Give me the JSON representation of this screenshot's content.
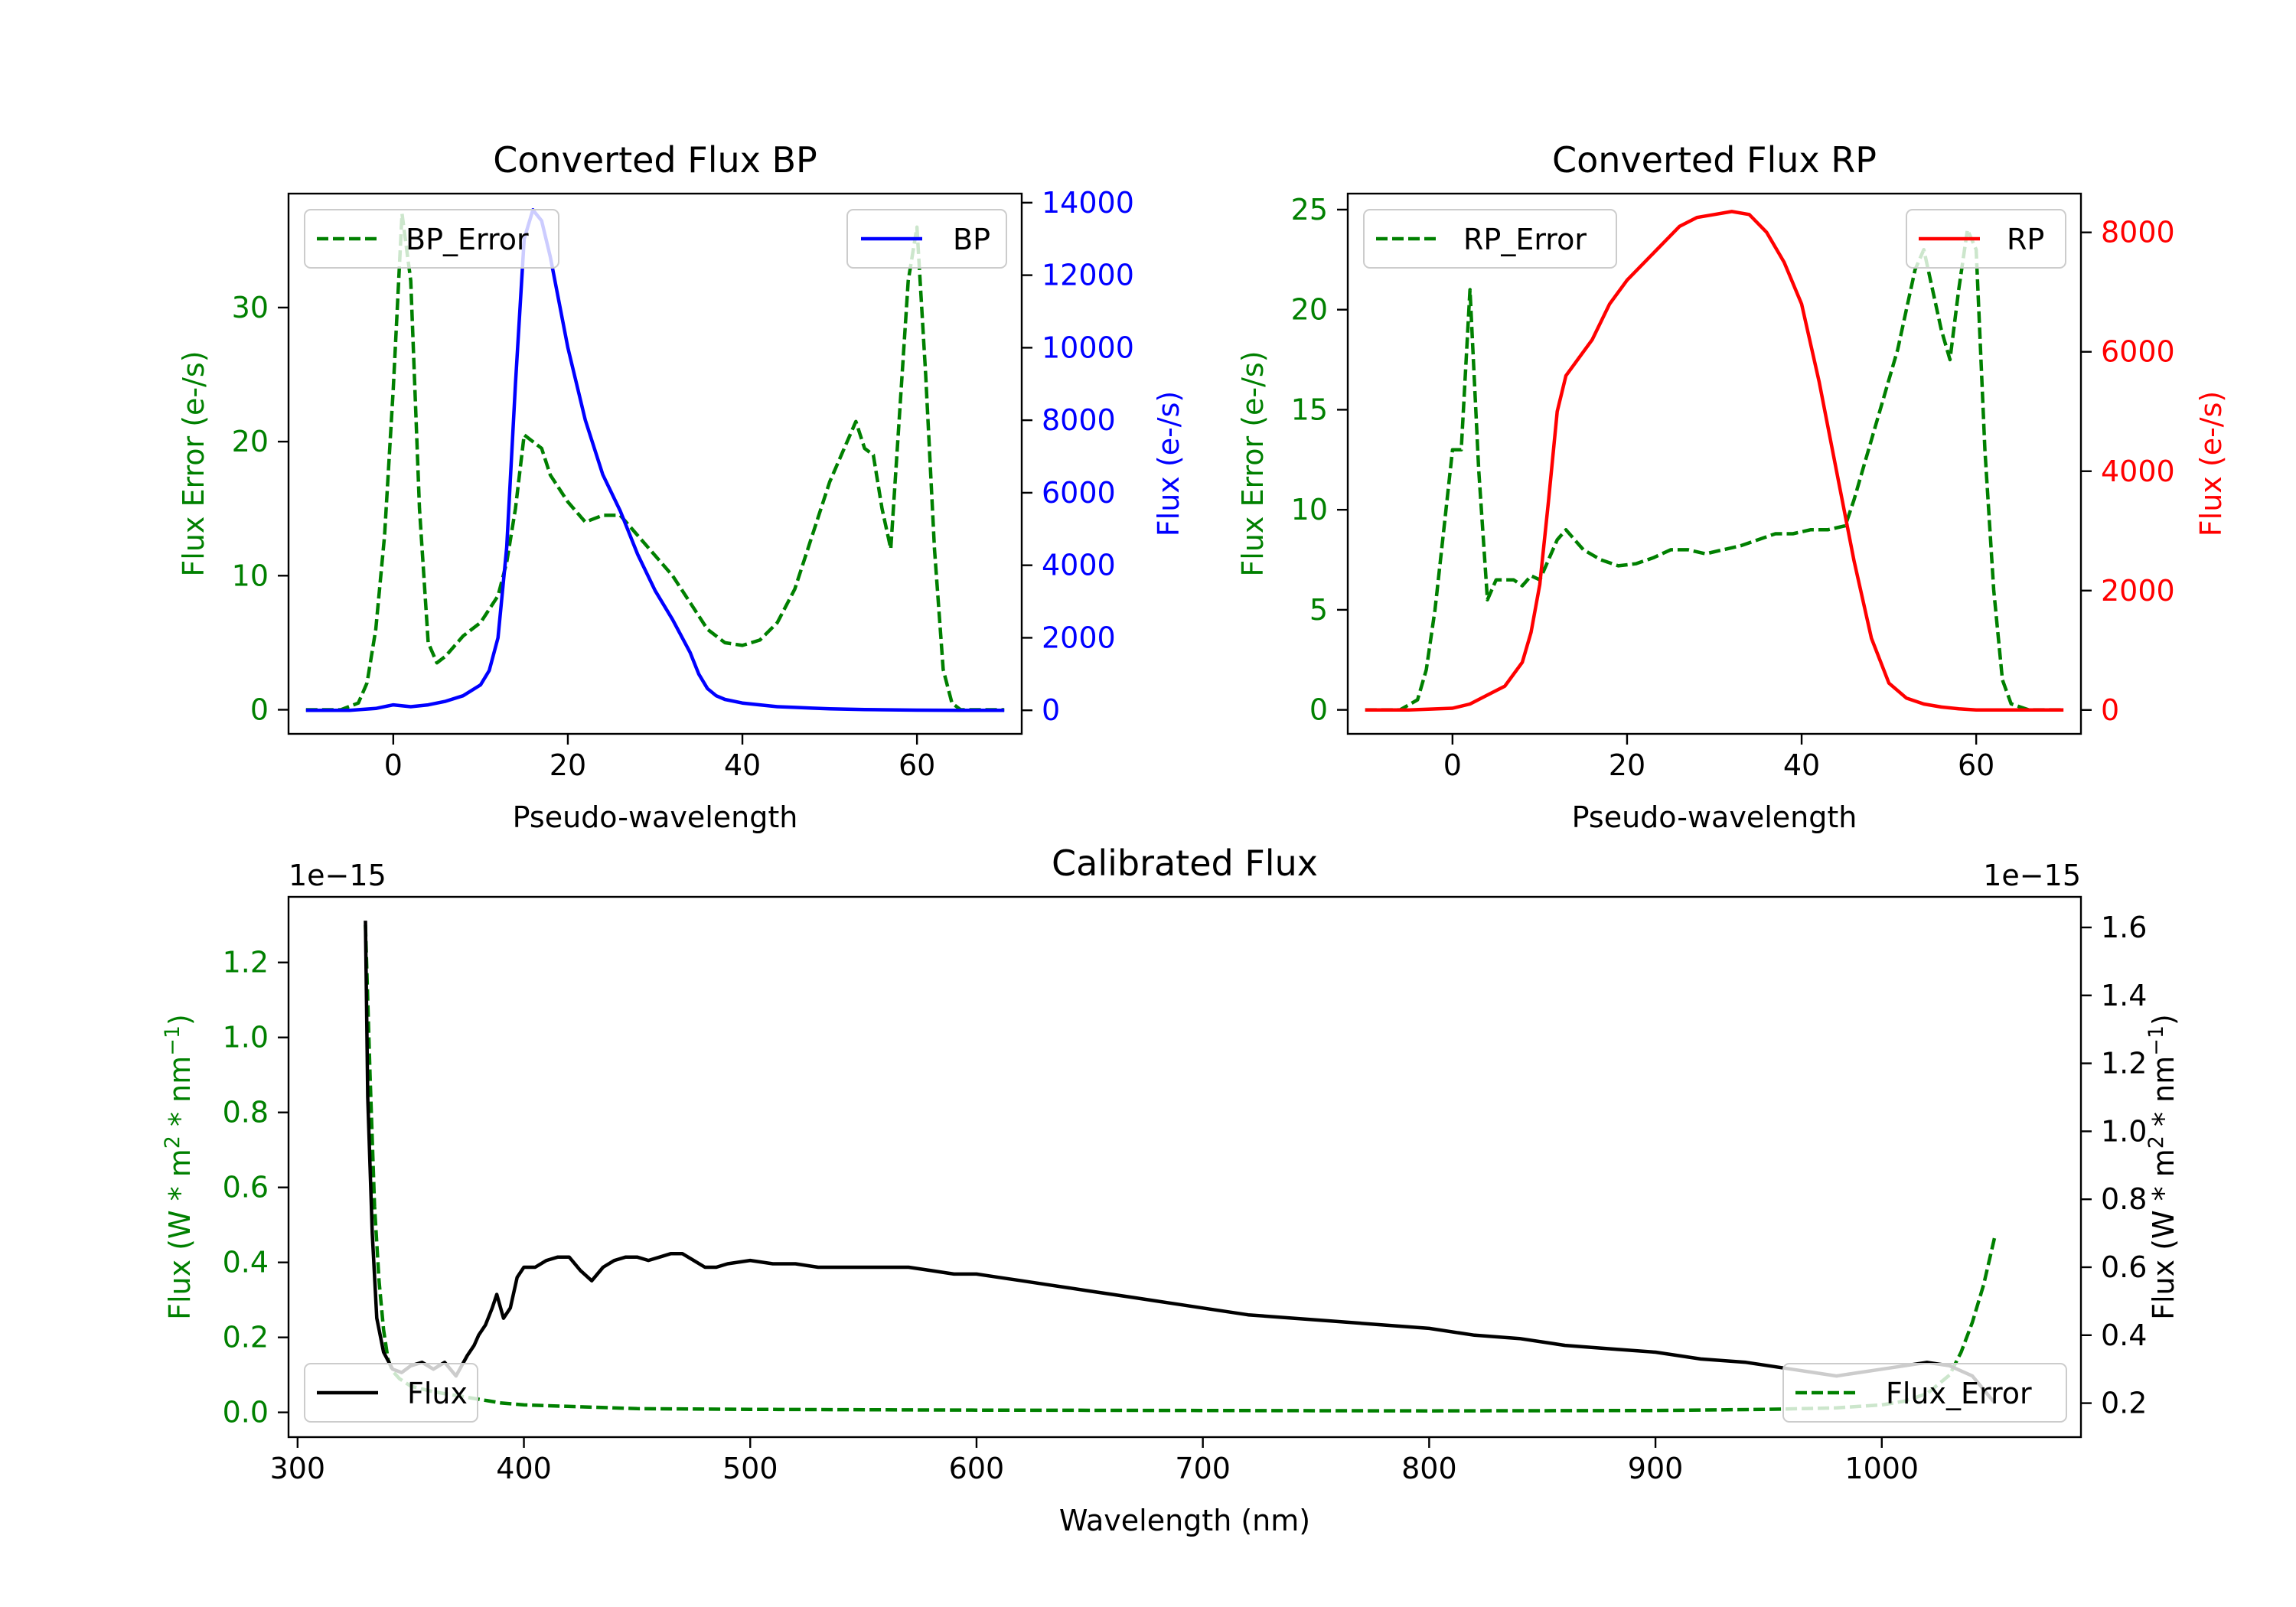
{
  "chart_data": [
    {
      "type": "line",
      "title": "Converted Flux BP",
      "xlabel": "Pseudo-wavelength",
      "ylabel_left": "Flux Error (e-/s)",
      "ylabel_right": "Flux (e-/s)",
      "xlim": [
        -12,
        72
      ],
      "ylim_left": [
        -1.8,
        38.5
      ],
      "ylim_right": [
        -650,
        14250
      ],
      "xticks": [
        0,
        20,
        40,
        60
      ],
      "xtick_labels": [
        "0",
        "20",
        "40",
        "60"
      ],
      "yticks_left": [
        0,
        10,
        20,
        30
      ],
      "ytick_labels_left": [
        "0",
        "10",
        "20",
        "30"
      ],
      "yticks_right": [
        0,
        2000,
        4000,
        6000,
        8000,
        10000,
        12000,
        14000
      ],
      "ytick_labels_right": [
        "0",
        "2000",
        "4000",
        "6000",
        "8000",
        "10000",
        "12000",
        "14000"
      ],
      "left_color": "#008000",
      "right_color": "#0000ff",
      "series": [
        {
          "name": "BP_Error",
          "axis": "left",
          "color": "#008000",
          "style": "dashed",
          "x": [
            -10,
            -6,
            -4,
            -3,
            -2,
            -1,
            0,
            1,
            2,
            3,
            4,
            5,
            6,
            8,
            10,
            12,
            13,
            14,
            15,
            16,
            17,
            18,
            20,
            22,
            24,
            26,
            28,
            30,
            32,
            34,
            36,
            38,
            40,
            42,
            44,
            46,
            48,
            50,
            52,
            53,
            54,
            55,
            56,
            57,
            58,
            59,
            60,
            61,
            62,
            63,
            64,
            65,
            66,
            68,
            70
          ],
          "values": [
            0,
            0,
            0.5,
            2,
            6,
            13,
            24,
            37,
            32,
            15,
            5,
            3.5,
            4,
            5.5,
            6.5,
            8.5,
            11,
            15,
            20.5,
            20,
            19.5,
            17.5,
            15.5,
            14,
            14.5,
            14.5,
            13,
            11.5,
            10,
            8,
            6,
            5,
            4.8,
            5.2,
            6.5,
            9,
            13,
            17,
            20,
            21.5,
            19.5,
            19,
            15,
            12,
            22,
            32,
            36,
            25,
            12,
            3,
            0.5,
            0,
            0,
            0,
            0
          ]
        },
        {
          "name": "BP",
          "axis": "right",
          "color": "#0000ff",
          "style": "solid",
          "x": [
            -10,
            -5,
            -2,
            0,
            2,
            4,
            6,
            8,
            10,
            11,
            12,
            13,
            14,
            15,
            16,
            17,
            18,
            20,
            22,
            24,
            26,
            28,
            30,
            32,
            34,
            35,
            36,
            37,
            38,
            40,
            42,
            44,
            46,
            48,
            50,
            52,
            54,
            56,
            58,
            60,
            65,
            70
          ],
          "values": [
            0,
            0,
            50,
            150,
            100,
            150,
            250,
            400,
            700,
            1100,
            2000,
            4500,
            9000,
            13000,
            13800,
            13500,
            12500,
            10000,
            8000,
            6500,
            5500,
            4300,
            3300,
            2500,
            1600,
            1000,
            600,
            400,
            300,
            200,
            150,
            100,
            80,
            60,
            40,
            30,
            20,
            15,
            10,
            5,
            0,
            0
          ]
        }
      ],
      "legend": [
        {
          "label": "BP_Error",
          "position": "top-left"
        },
        {
          "label": "BP",
          "position": "top-right"
        }
      ]
    },
    {
      "type": "line",
      "title": "Converted Flux RP",
      "xlabel": "Pseudo-wavelength",
      "ylabel_left": "Flux Error (e-/s)",
      "ylabel_right": "Flux (e-/s)",
      "xlim": [
        -12,
        72
      ],
      "ylim_left": [
        -1.2,
        25.8
      ],
      "ylim_right": [
        -400,
        8650
      ],
      "xticks": [
        0,
        20,
        40,
        60
      ],
      "xtick_labels": [
        "0",
        "20",
        "40",
        "60"
      ],
      "yticks_left": [
        0,
        5,
        10,
        15,
        20,
        25
      ],
      "ytick_labels_left": [
        "0",
        "5",
        "10",
        "15",
        "20",
        "25"
      ],
      "yticks_right": [
        0,
        2000,
        4000,
        6000,
        8000
      ],
      "ytick_labels_right": [
        "0",
        "2000",
        "4000",
        "6000",
        "8000"
      ],
      "left_color": "#008000",
      "right_color": "#ff0000",
      "series": [
        {
          "name": "RP_Error",
          "axis": "left",
          "color": "#008000",
          "style": "dashed",
          "x": [
            -10,
            -6,
            -4,
            -3,
            -2,
            -1,
            0,
            1,
            2,
            3,
            4,
            5,
            6,
            7,
            8,
            9,
            10,
            11,
            12,
            13,
            14,
            15,
            17,
            19,
            21,
            23,
            25,
            27,
            29,
            31,
            33,
            35,
            37,
            39,
            41,
            43,
            45,
            46,
            47,
            48,
            49,
            50,
            51,
            52,
            53,
            54,
            55,
            56,
            57,
            58,
            59,
            60,
            61,
            62,
            63,
            64,
            66,
            70
          ],
          "values": [
            0,
            0,
            0.5,
            2,
            5,
            9,
            13,
            13,
            21,
            12,
            5.5,
            6.5,
            6.5,
            6.5,
            6.2,
            6.7,
            6.5,
            7.5,
            8.5,
            9,
            8.5,
            8,
            7.5,
            7.2,
            7.3,
            7.6,
            8,
            8,
            7.8,
            8,
            8.2,
            8.5,
            8.8,
            8.8,
            9,
            9,
            9.2,
            10.5,
            12,
            13.5,
            15,
            16.5,
            18,
            20,
            22,
            23,
            21,
            19,
            17.5,
            21,
            24,
            23,
            13,
            6,
            1.5,
            0.3,
            0,
            0
          ]
        },
        {
          "name": "RP",
          "axis": "right",
          "color": "#ff0000",
          "style": "solid",
          "x": [
            -10,
            -5,
            0,
            2,
            4,
            6,
            8,
            9,
            10,
            11,
            12,
            13,
            14,
            16,
            18,
            20,
            22,
            24,
            26,
            28,
            30,
            32,
            34,
            36,
            38,
            40,
            42,
            44,
            46,
            48,
            50,
            52,
            54,
            56,
            58,
            60,
            65,
            70
          ],
          "values": [
            0,
            0,
            30,
            100,
            250,
            400,
            800,
            1300,
            2100,
            3500,
            5000,
            5600,
            5800,
            6200,
            6800,
            7200,
            7500,
            7800,
            8100,
            8250,
            8300,
            8350,
            8300,
            8000,
            7500,
            6800,
            5500,
            4000,
            2500,
            1200,
            450,
            200,
            100,
            50,
            20,
            0,
            0,
            0
          ]
        }
      ],
      "legend": [
        {
          "label": "RP_Error",
          "position": "top-left"
        },
        {
          "label": "RP",
          "position": "top-right"
        }
      ]
    },
    {
      "type": "line",
      "title": "Calibrated Flux",
      "xlabel": "Wavelength (nm)",
      "ylabel_left": "Flux (W * m^2 * nm^-1)",
      "ylabel_right": "Flux (W * m^2 * nm^-1)",
      "left_offset_label": "1e−15",
      "right_offset_label": "1e−15",
      "xlim": [
        296,
        1088
      ],
      "ylim_left": [
        -0.066,
        1.375
      ],
      "ylim_right": [
        0.1,
        1.69
      ],
      "xticks": [
        300,
        400,
        500,
        600,
        700,
        800,
        900,
        1000
      ],
      "xtick_labels": [
        "300",
        "400",
        "500",
        "600",
        "700",
        "800",
        "900",
        "1000"
      ],
      "yticks_left": [
        0.0,
        0.2,
        0.4,
        0.6,
        0.8,
        1.0,
        1.2
      ],
      "ytick_labels_left": [
        "0.0",
        "0.2",
        "0.4",
        "0.6",
        "0.8",
        "1.0",
        "1.2"
      ],
      "yticks_right": [
        0.2,
        0.4,
        0.6,
        0.8,
        1.0,
        1.2,
        1.4,
        1.6
      ],
      "ytick_labels_right": [
        "0.2",
        "0.4",
        "0.6",
        "0.8",
        "1.0",
        "1.2",
        "1.4",
        "1.6"
      ],
      "left_color": "#008000",
      "right_color": "#000000",
      "series": [
        {
          "name": "Flux_Error",
          "axis": "left",
          "color": "#008000",
          "style": "dashed",
          "x": [
            330,
            332,
            334,
            336,
            338,
            340,
            342,
            345,
            350,
            360,
            370,
            380,
            390,
            400,
            450,
            500,
            600,
            700,
            800,
            900,
            950,
            980,
            1000,
            1010,
            1020,
            1030,
            1035,
            1040,
            1045,
            1050
          ],
          "values": [
            1.3,
            0.9,
            0.55,
            0.35,
            0.22,
            0.14,
            0.11,
            0.09,
            0.07,
            0.055,
            0.045,
            0.035,
            0.025,
            0.02,
            0.01,
            0.008,
            0.006,
            0.005,
            0.004,
            0.005,
            0.008,
            0.012,
            0.02,
            0.03,
            0.05,
            0.1,
            0.16,
            0.24,
            0.34,
            0.47
          ]
        },
        {
          "name": "Flux",
          "axis": "right",
          "color": "#000000",
          "style": "solid",
          "x": [
            330,
            331,
            333,
            335,
            338,
            342,
            346,
            350,
            355,
            360,
            365,
            370,
            375,
            378,
            380,
            383,
            386,
            388,
            391,
            394,
            397,
            400,
            405,
            410,
            415,
            420,
            425,
            430,
            435,
            440,
            445,
            450,
            455,
            460,
            465,
            470,
            475,
            480,
            485,
            490,
            500,
            510,
            520,
            530,
            540,
            550,
            560,
            570,
            580,
            590,
            600,
            610,
            620,
            630,
            640,
            650,
            660,
            670,
            680,
            690,
            700,
            720,
            740,
            760,
            780,
            800,
            820,
            840,
            860,
            880,
            900,
            920,
            940,
            960,
            970,
            980,
            990,
            1000,
            1010,
            1020,
            1030,
            1040,
            1045,
            1050
          ],
          "values": [
            1.62,
            1.1,
            0.7,
            0.45,
            0.35,
            0.3,
            0.29,
            0.31,
            0.32,
            0.3,
            0.32,
            0.28,
            0.34,
            0.37,
            0.4,
            0.43,
            0.48,
            0.52,
            0.45,
            0.48,
            0.57,
            0.6,
            0.6,
            0.62,
            0.63,
            0.63,
            0.59,
            0.56,
            0.6,
            0.62,
            0.63,
            0.63,
            0.62,
            0.63,
            0.64,
            0.64,
            0.62,
            0.6,
            0.6,
            0.61,
            0.62,
            0.61,
            0.61,
            0.6,
            0.6,
            0.6,
            0.6,
            0.6,
            0.59,
            0.58,
            0.58,
            0.57,
            0.56,
            0.55,
            0.54,
            0.53,
            0.52,
            0.51,
            0.5,
            0.49,
            0.48,
            0.46,
            0.45,
            0.44,
            0.43,
            0.42,
            0.4,
            0.39,
            0.37,
            0.36,
            0.35,
            0.33,
            0.32,
            0.3,
            0.29,
            0.28,
            0.29,
            0.3,
            0.31,
            0.32,
            0.31,
            0.28,
            0.24,
            0.2
          ]
        }
      ],
      "legend": [
        {
          "label": "Flux",
          "position": "bottom-left"
        },
        {
          "label": "Flux_Error",
          "position": "bottom-right"
        }
      ]
    }
  ]
}
